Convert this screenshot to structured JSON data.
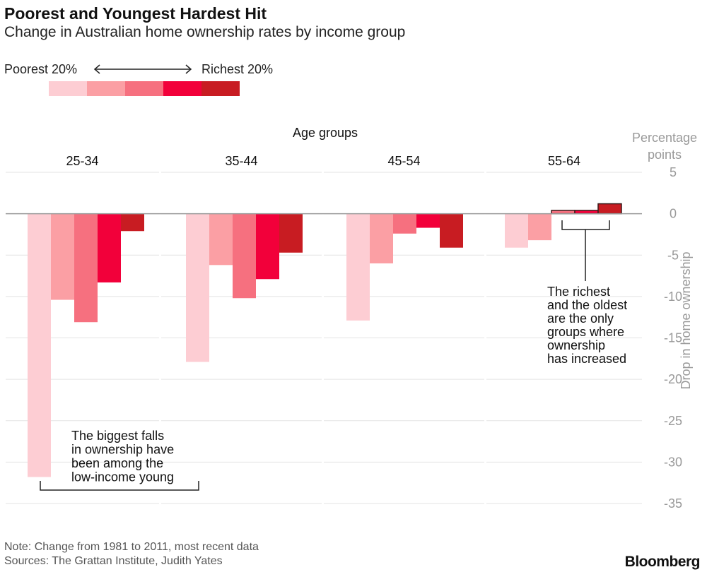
{
  "header": {
    "title": "Poorest and Youngest Hardest Hit",
    "subtitle": "Change in Australian home ownership rates by income group"
  },
  "legend": {
    "left_label": "Poorest 20%",
    "right_label": "Richest 20%",
    "colors": [
      "#fdcdd3",
      "#fb9fa4",
      "#f6707f",
      "#f2003a",
      "#c81c22"
    ]
  },
  "chart_data": {
    "type": "bar",
    "facet_title": "Age groups",
    "unit_label": "Percentage points",
    "ylabel": "Drop in home ownership",
    "ylim": [
      -35,
      5
    ],
    "yticks": [
      5,
      0,
      -5,
      -10,
      -15,
      -20,
      -25,
      -30,
      -35
    ],
    "ytick_labels": [
      "5",
      "0",
      "-5",
      "-10",
      "-15",
      "-20",
      "-25",
      "-30",
      "-35"
    ],
    "groups": [
      {
        "name": "25-34",
        "values": [
          -31.8,
          -10.4,
          -13.1,
          -8.3,
          -2.1
        ]
      },
      {
        "name": "35-44",
        "values": [
          -17.9,
          -6.2,
          -10.2,
          -7.9,
          -4.7
        ]
      },
      {
        "name": "45-54",
        "values": [
          -12.9,
          -6.0,
          -2.4,
          -1.7,
          -4.1
        ]
      },
      {
        "name": "55-64",
        "values": [
          -4.1,
          -3.2,
          0.4,
          0.4,
          1.2
        ]
      }
    ],
    "annotations": [
      {
        "lines": [
          "The biggest falls",
          "in ownership have",
          "been among the",
          "low-income young"
        ]
      },
      {
        "lines": [
          "The richest",
          "and the oldest",
          "are the only",
          "groups where",
          "ownership",
          "has increased"
        ]
      }
    ]
  },
  "footer": {
    "note": "Note: Change from 1981 to 2011, most recent data",
    "sources": "Sources: The Grattan Institute, Judith Yates",
    "brand": "Bloomberg"
  }
}
